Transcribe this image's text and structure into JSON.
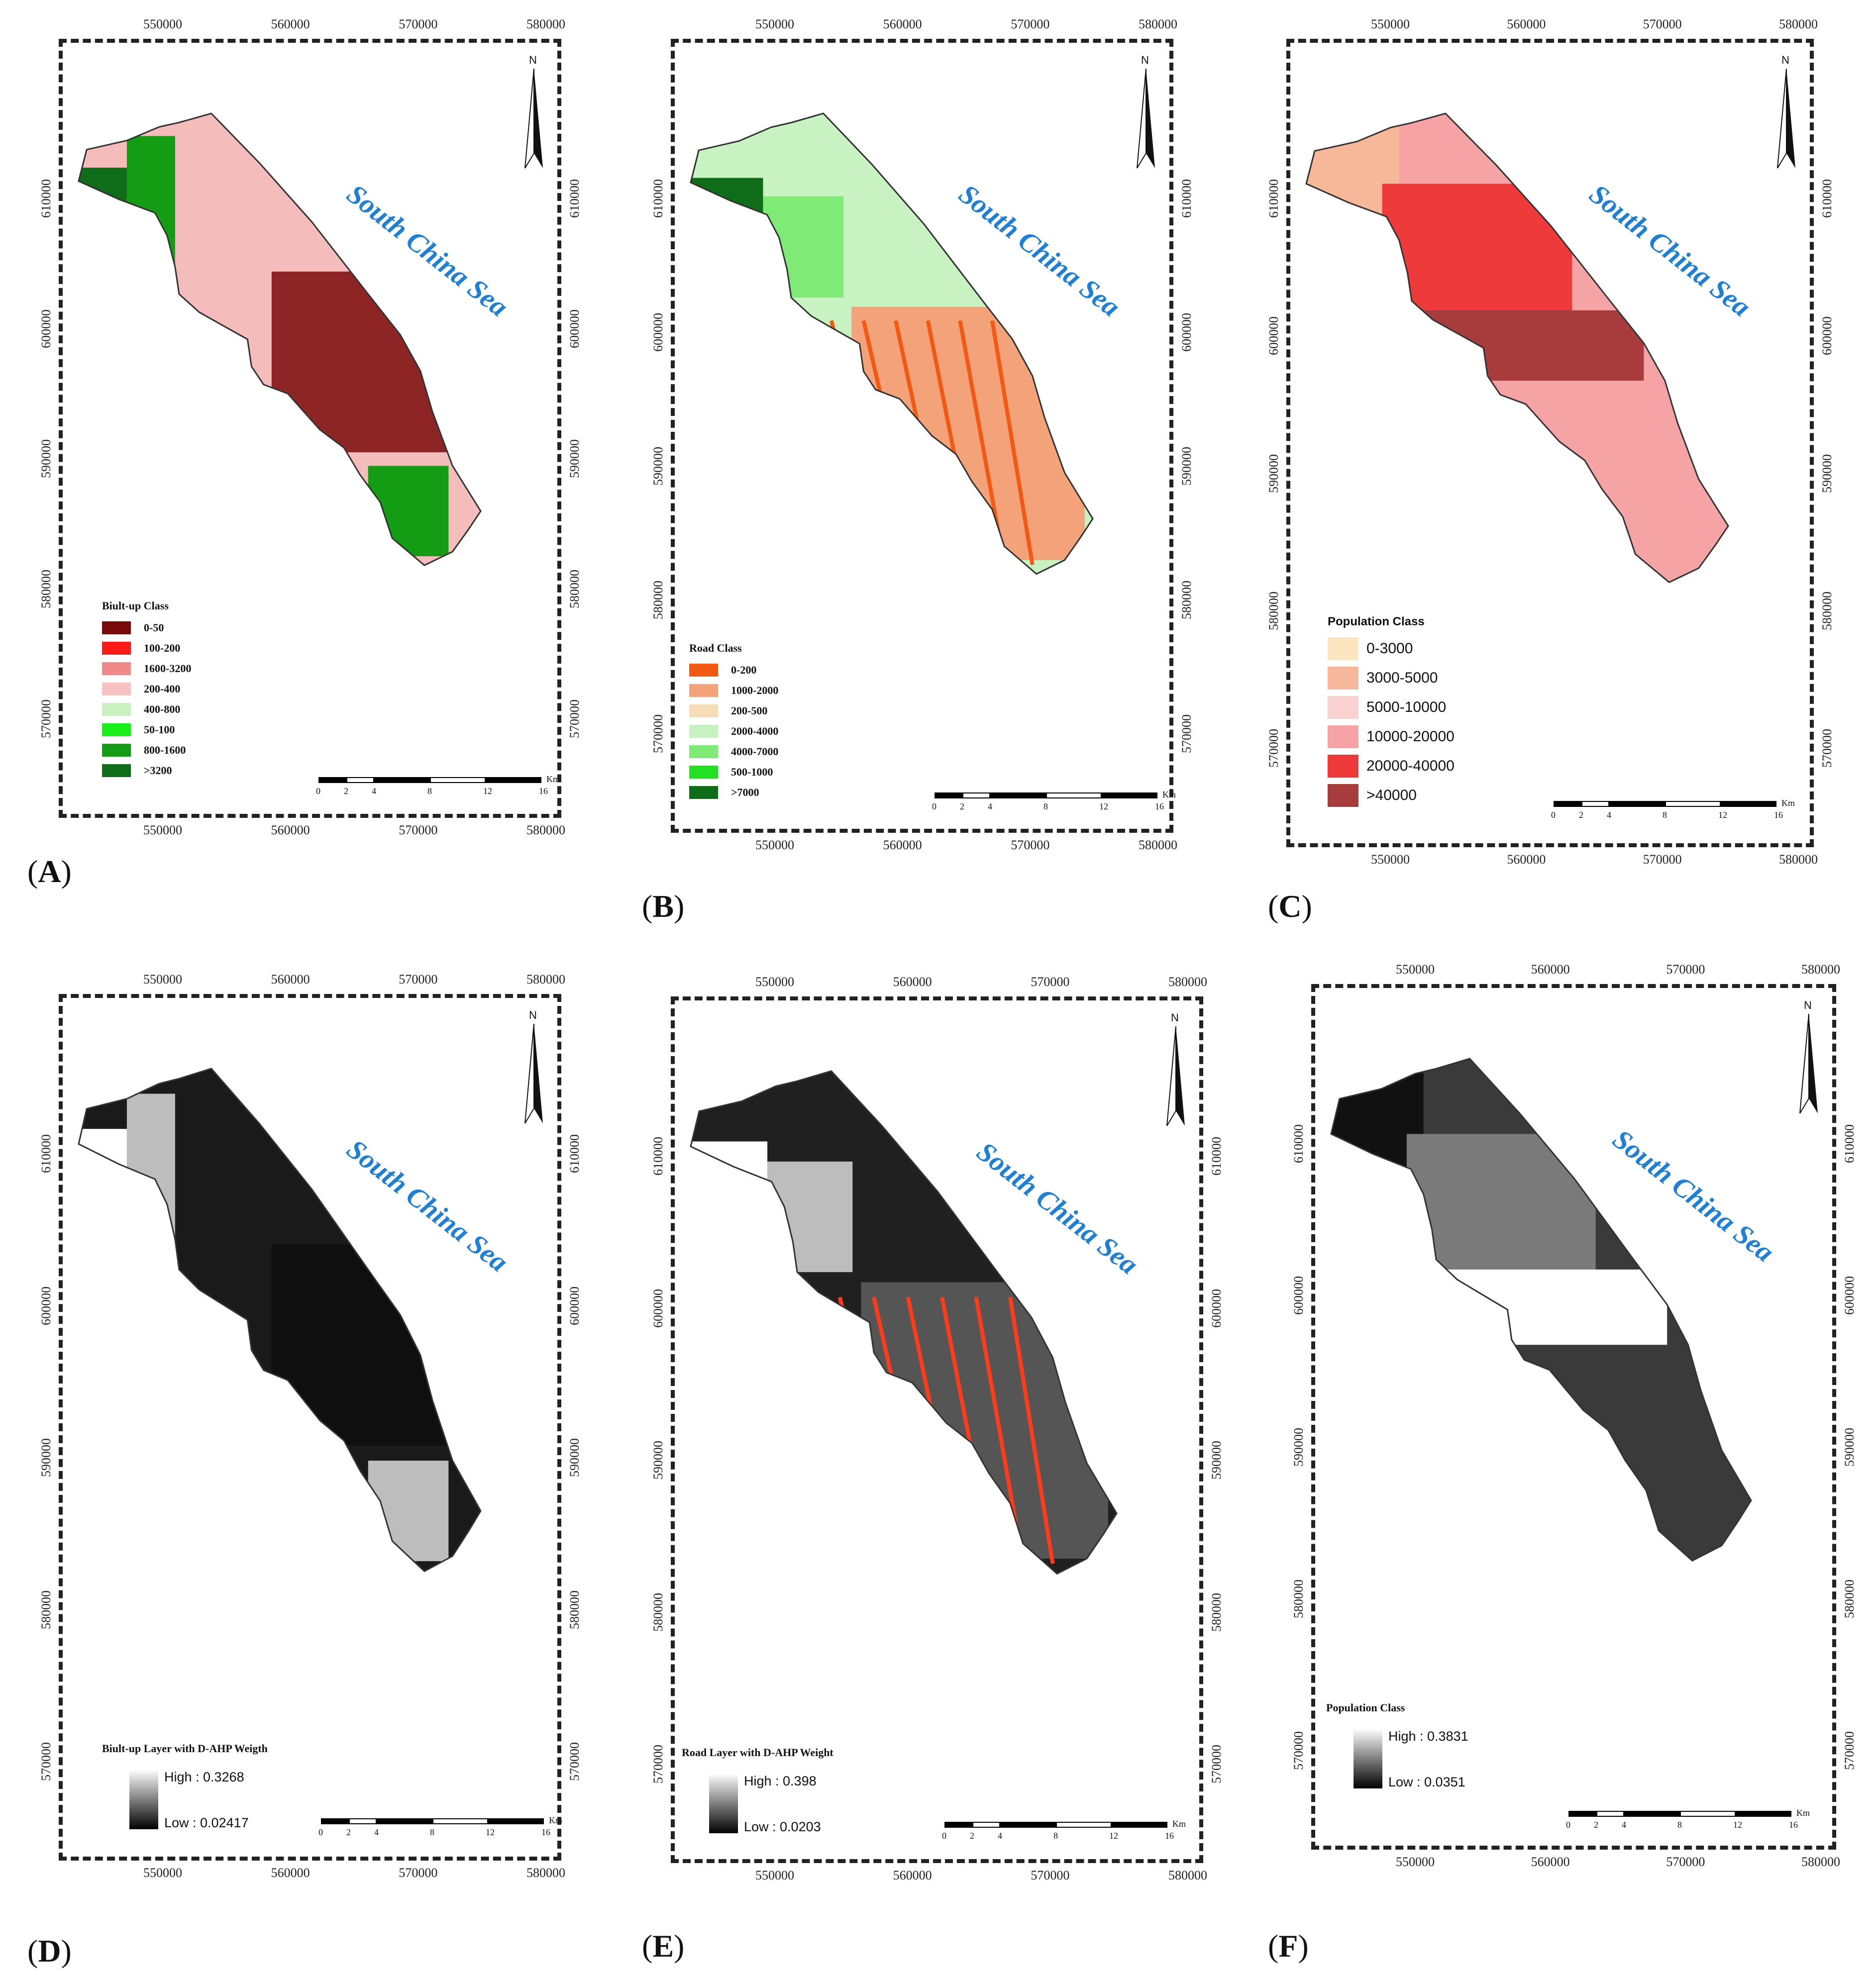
{
  "figure": {
    "panels": [
      {
        "id": "A",
        "label": "A",
        "sea_label": "South China Sea",
        "north_label": "N",
        "legend": {
          "kind": "classes",
          "title": "Biult-up Class",
          "items": [
            {
              "label": "0-50",
              "color": "#7a0a0a"
            },
            {
              "label": "100-200",
              "color": "#ff1a1a"
            },
            {
              "label": "1600-3200",
              "color": "#f08a8a"
            },
            {
              "label": "200-400",
              "color": "#f7c2c2"
            },
            {
              "label": "400-800",
              "color": "#c8f0c0"
            },
            {
              "label": "50-100",
              "color": "#19ef19"
            },
            {
              "label": "800-1600",
              "color": "#149c14"
            },
            {
              "label": ">3200",
              "color": "#0f6d1a"
            }
          ]
        },
        "x_ticks": [
          "550000",
          "560000",
          "570000",
          "580000"
        ],
        "y_ticks": [
          "610000",
          "600000",
          "590000",
          "580000",
          "570000"
        ],
        "scale": {
          "labels": [
            "0",
            "2",
            "4",
            "8",
            "12",
            "16"
          ],
          "unit": "Km"
        }
      },
      {
        "id": "B",
        "label": "B",
        "sea_label": "South China Sea",
        "north_label": "N",
        "legend": {
          "kind": "classes",
          "title": "Road Class",
          "items": [
            {
              "label": "0-200",
              "color": "#f25a14"
            },
            {
              "label": "1000-2000",
              "color": "#f4a27a"
            },
            {
              "label": "200-500",
              "color": "#f7dcb8"
            },
            {
              "label": "2000-4000",
              "color": "#c6f2c0"
            },
            {
              "label": "4000-7000",
              "color": "#7fea76"
            },
            {
              "label": "500-1000",
              "color": "#22e022"
            },
            {
              "label": ">7000",
              "color": "#0f6d1a"
            }
          ]
        },
        "x_ticks": [
          "550000",
          "560000",
          "570000",
          "580000"
        ],
        "y_ticks": [
          "610000",
          "600000",
          "590000",
          "580000",
          "570000"
        ],
        "scale": {
          "labels": [
            "0",
            "2",
            "4",
            "8",
            "12",
            "16"
          ],
          "unit": "Km"
        }
      },
      {
        "id": "C",
        "label": "C",
        "sea_label": "South China Sea",
        "north_label": "N",
        "legend": {
          "kind": "classes",
          "title": "Population Class",
          "items": [
            {
              "label": "0-3000",
              "color": "#fbe6c0"
            },
            {
              "label": "3000-5000",
              "color": "#f6b899"
            },
            {
              "label": "5000-10000",
              "color": "#fad2d2"
            },
            {
              "label": "10000-20000",
              "color": "#f6a3a6"
            },
            {
              "label": "20000-40000",
              "color": "#ee3a3a"
            },
            {
              "label": ">40000",
              "color": "#a83c3c"
            }
          ]
        },
        "x_ticks": [
          "550000",
          "560000",
          "570000",
          "580000"
        ],
        "y_ticks": [
          "610000",
          "600000",
          "590000",
          "580000",
          "570000"
        ],
        "scale": {
          "labels": [
            "0",
            "2",
            "4",
            "8",
            "12",
            "16"
          ],
          "unit": "Km"
        }
      },
      {
        "id": "D",
        "label": "D",
        "sea_label": "South China Sea",
        "north_label": "N",
        "legend": {
          "kind": "gradient",
          "title": "Biult-up Layer  with D-AHP Weigth",
          "high": "High : 0.3268",
          "low": "Low : 0.02417"
        },
        "x_ticks": [
          "550000",
          "560000",
          "570000",
          "580000"
        ],
        "y_ticks": [
          "610000",
          "600000",
          "590000",
          "580000",
          "570000"
        ],
        "scale": {
          "labels": [
            "0",
            "2",
            "4",
            "8",
            "12",
            "16"
          ],
          "unit": "Km"
        }
      },
      {
        "id": "E",
        "label": "E",
        "sea_label": "South China Sea",
        "north_label": "N",
        "legend": {
          "kind": "gradient",
          "title": "Road Layer with D-AHP Weight",
          "high": "High : 0.398",
          "low": "Low : 0.0203"
        },
        "x_ticks": [
          "550000",
          "560000",
          "570000",
          "580000"
        ],
        "y_ticks": [
          "610000",
          "600000",
          "590000",
          "580000",
          "570000"
        ],
        "scale": {
          "labels": [
            "0",
            "2",
            "4",
            "8",
            "12",
            "16"
          ],
          "unit": "Km"
        }
      },
      {
        "id": "F",
        "label": "F",
        "sea_label": "South China Sea",
        "north_label": "N",
        "legend": {
          "kind": "gradient",
          "title": "Population Class",
          "high": "High : 0.3831",
          "low": "Low : 0.0351"
        },
        "x_ticks": [
          "550000",
          "560000",
          "570000",
          "580000"
        ],
        "y_ticks": [
          "610000",
          "600000",
          "590000",
          "580000",
          "570000"
        ],
        "scale": {
          "labels": [
            "0",
            "2",
            "4",
            "8",
            "12",
            "16"
          ],
          "unit": "Km"
        }
      }
    ]
  }
}
